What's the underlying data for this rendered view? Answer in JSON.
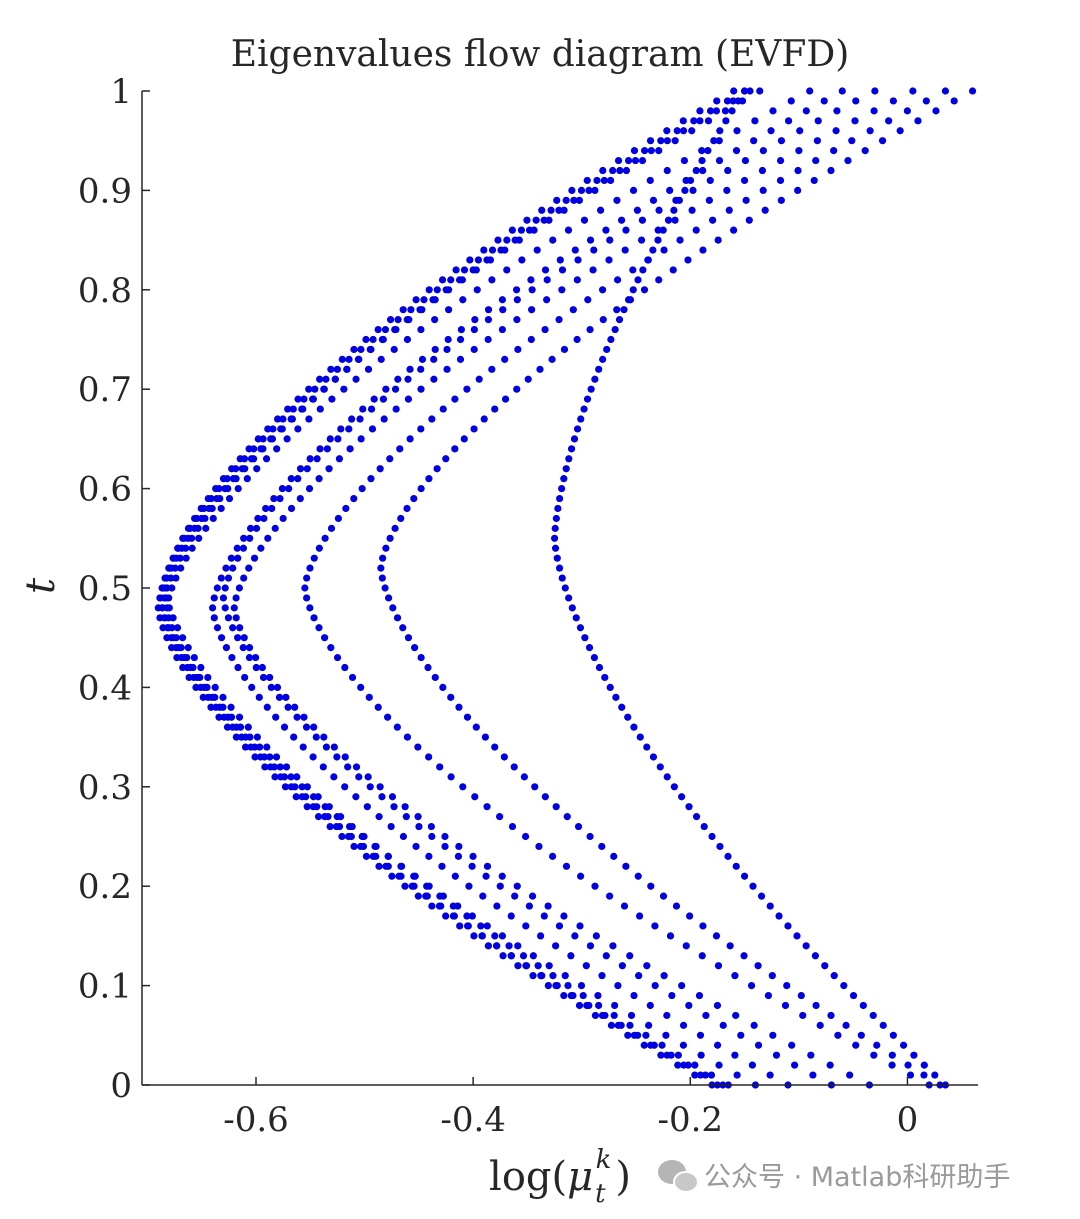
{
  "chart_data": {
    "type": "scatter",
    "title": "Eigenvalues flow diagram (EVFD)",
    "xlabel": "log(μ_t^k)",
    "ylabel": "t",
    "xlim": [
      -0.705,
      0.065
    ],
    "ylim": [
      0,
      1
    ],
    "xticks": [
      -0.6,
      -0.4,
      -0.2,
      0
    ],
    "xtick_labels": [
      "-0.6",
      "-0.4",
      "-0.2",
      "0"
    ],
    "yticks": [
      0,
      0.1,
      0.2,
      0.3,
      0.4,
      0.5,
      0.6,
      0.7,
      0.8,
      0.9,
      1
    ],
    "ytick_labels": [
      "0",
      "0.1",
      "0.2",
      "0.3",
      "0.4",
      "0.5",
      "0.6",
      "0.7",
      "0.8",
      "0.9",
      "1"
    ],
    "grid": false,
    "legend": "none",
    "marker_color": "#0000e0",
    "points_per_curve": 101,
    "series": [
      {
        "start": -0.18,
        "vertex": -0.69,
        "vertex_t": 0.48,
        "end": -0.136
      },
      {
        "start": -0.175,
        "vertex": -0.688,
        "vertex_t": 0.49,
        "end": -0.15
      },
      {
        "start": -0.17,
        "vertex": -0.686,
        "vertex_t": 0.48,
        "end": -0.145
      },
      {
        "start": -0.165,
        "vertex": -0.684,
        "vertex_t": 0.5,
        "end": -0.16
      },
      {
        "start": -0.14,
        "vertex": -0.682,
        "vertex_t": 0.48,
        "end": -0.09
      },
      {
        "start": -0.11,
        "vertex": -0.64,
        "vertex_t": 0.48,
        "end": -0.06
      },
      {
        "start": -0.07,
        "vertex": -0.63,
        "vertex_t": 0.49,
        "end": -0.03
      },
      {
        "start": -0.035,
        "vertex": -0.62,
        "vertex_t": 0.48,
        "end": 0.005
      },
      {
        "start": 0.02,
        "vertex": -0.555,
        "vertex_t": 0.5,
        "end": 0.035
      },
      {
        "start": 0.03,
        "vertex": -0.485,
        "vertex_t": 0.52,
        "end": 0.06
      },
      {
        "start": 0.035,
        "vertex": -0.325,
        "vertex_t": 0.55,
        "end": -0.15
      }
    ]
  },
  "watermark": {
    "text": "公众号 · Matlab科研助手",
    "icon": "wechat-icon"
  }
}
